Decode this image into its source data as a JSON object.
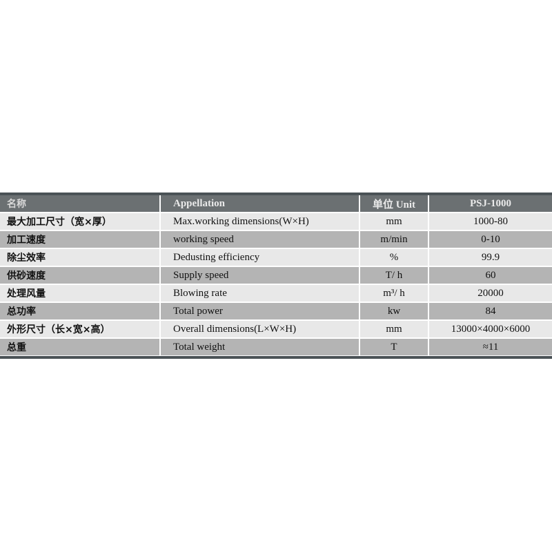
{
  "table": {
    "headers": {
      "name_cn": "名称",
      "appellation": "Appellation",
      "unit": "单位  Unit",
      "model": "PSJ-1000"
    },
    "rows": [
      {
        "name_cn": "最大加工尺寸（宽×厚）",
        "appellation": "Max.working dimensions(W×H)",
        "unit": "mm",
        "value": "1000-80"
      },
      {
        "name_cn": "加工速度",
        "appellation": "working speed",
        "unit": "m/min",
        "value": "0-10"
      },
      {
        "name_cn": "除尘效率",
        "appellation": "Dedusting efficiency",
        "unit": "%",
        "value": "99.9"
      },
      {
        "name_cn": "供砂速度",
        "appellation": "Supply speed",
        "unit": "T/ h",
        "value": "60"
      },
      {
        "name_cn": "处理风量",
        "appellation": "Blowing rate",
        "unit": "m³/ h",
        "value": "20000"
      },
      {
        "name_cn": "总功率",
        "appellation": "Total power",
        "unit": "kw",
        "value": "84"
      },
      {
        "name_cn": "外形尺寸（长×宽×高）",
        "appellation": "Overall dimensions(L×W×H)",
        "unit": "mm",
        "value": "13000×4000×6000"
      },
      {
        "name_cn": "总重",
        "appellation": "Total weight",
        "unit": "T",
        "value": "≈11"
      }
    ]
  }
}
